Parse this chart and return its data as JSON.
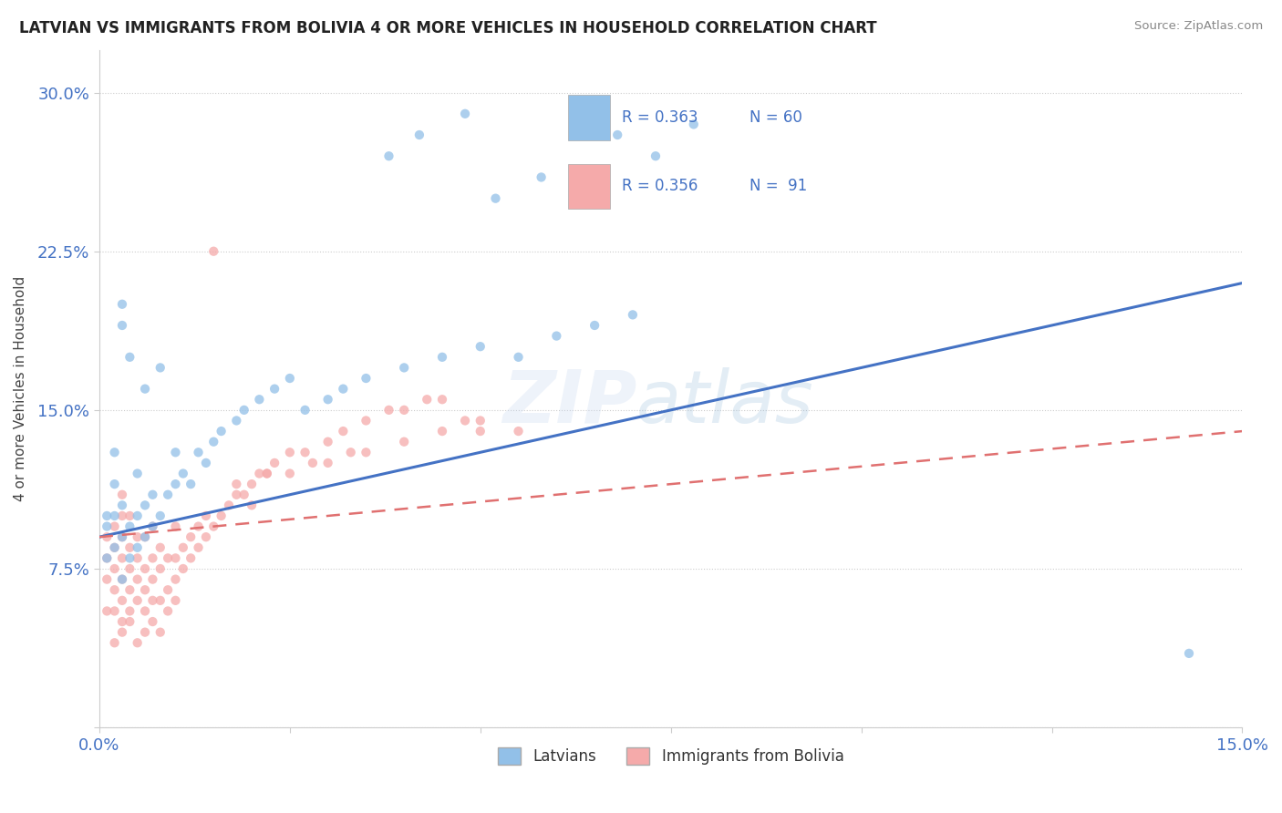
{
  "title": "LATVIAN VS IMMIGRANTS FROM BOLIVIA 4 OR MORE VEHICLES IN HOUSEHOLD CORRELATION CHART",
  "source": "Source: ZipAtlas.com",
  "ylabel": "4 or more Vehicles in Household",
  "xlim": [
    0.0,
    0.15
  ],
  "ylim": [
    0.0,
    0.32
  ],
  "R_latvian": 0.363,
  "N_latvian": 60,
  "R_bolivia": 0.356,
  "N_bolivia": 91,
  "color_latvian": "#92C0E8",
  "color_bolivia": "#F5AAAA",
  "color_trend_latvian": "#4472C4",
  "color_trend_bolivia": "#E07070",
  "legend_latvians": "Latvians",
  "legend_bolivia": "Immigrants from Bolivia",
  "trend_lat_y0": 0.09,
  "trend_lat_y1": 0.21,
  "trend_bol_y0": 0.09,
  "trend_bol_y1": 0.14,
  "latvian_x": [
    0.001,
    0.001,
    0.001,
    0.002,
    0.002,
    0.002,
    0.002,
    0.003,
    0.003,
    0.003,
    0.003,
    0.003,
    0.004,
    0.004,
    0.004,
    0.005,
    0.005,
    0.005,
    0.006,
    0.006,
    0.006,
    0.007,
    0.007,
    0.008,
    0.008,
    0.009,
    0.01,
    0.01,
    0.011,
    0.012,
    0.013,
    0.014,
    0.015,
    0.016,
    0.018,
    0.019,
    0.021,
    0.023,
    0.025,
    0.027,
    0.03,
    0.032,
    0.035,
    0.04,
    0.045,
    0.05,
    0.055,
    0.06,
    0.065,
    0.07,
    0.038,
    0.042,
    0.048,
    0.052,
    0.058,
    0.063,
    0.068,
    0.073,
    0.078,
    0.143
  ],
  "latvian_y": [
    0.095,
    0.08,
    0.1,
    0.085,
    0.1,
    0.115,
    0.13,
    0.07,
    0.09,
    0.105,
    0.19,
    0.2,
    0.08,
    0.095,
    0.175,
    0.085,
    0.1,
    0.12,
    0.09,
    0.105,
    0.16,
    0.095,
    0.11,
    0.1,
    0.17,
    0.11,
    0.115,
    0.13,
    0.12,
    0.115,
    0.13,
    0.125,
    0.135,
    0.14,
    0.145,
    0.15,
    0.155,
    0.16,
    0.165,
    0.15,
    0.155,
    0.16,
    0.165,
    0.17,
    0.175,
    0.18,
    0.175,
    0.185,
    0.19,
    0.195,
    0.27,
    0.28,
    0.29,
    0.25,
    0.26,
    0.26,
    0.28,
    0.27,
    0.285,
    0.035
  ],
  "bolivia_x": [
    0.001,
    0.001,
    0.001,
    0.001,
    0.002,
    0.002,
    0.002,
    0.002,
    0.002,
    0.003,
    0.003,
    0.003,
    0.003,
    0.003,
    0.003,
    0.003,
    0.004,
    0.004,
    0.004,
    0.004,
    0.004,
    0.005,
    0.005,
    0.005,
    0.005,
    0.006,
    0.006,
    0.006,
    0.006,
    0.007,
    0.007,
    0.007,
    0.007,
    0.008,
    0.008,
    0.008,
    0.009,
    0.009,
    0.01,
    0.01,
    0.01,
    0.011,
    0.011,
    0.012,
    0.012,
    0.013,
    0.013,
    0.014,
    0.014,
    0.015,
    0.016,
    0.017,
    0.018,
    0.019,
    0.02,
    0.021,
    0.022,
    0.023,
    0.025,
    0.027,
    0.03,
    0.032,
    0.035,
    0.038,
    0.04,
    0.043,
    0.045,
    0.048,
    0.05,
    0.055,
    0.002,
    0.003,
    0.004,
    0.005,
    0.006,
    0.007,
    0.008,
    0.009,
    0.01,
    0.02,
    0.025,
    0.03,
    0.035,
    0.04,
    0.045,
    0.05,
    0.015,
    0.018,
    0.022,
    0.028,
    0.033
  ],
  "bolivia_y": [
    0.055,
    0.07,
    0.08,
    0.09,
    0.055,
    0.065,
    0.075,
    0.085,
    0.095,
    0.05,
    0.06,
    0.07,
    0.08,
    0.09,
    0.1,
    0.11,
    0.055,
    0.065,
    0.075,
    0.085,
    0.1,
    0.06,
    0.07,
    0.08,
    0.09,
    0.055,
    0.065,
    0.075,
    0.09,
    0.06,
    0.07,
    0.08,
    0.095,
    0.06,
    0.075,
    0.085,
    0.065,
    0.08,
    0.07,
    0.08,
    0.095,
    0.075,
    0.085,
    0.08,
    0.09,
    0.085,
    0.095,
    0.09,
    0.1,
    0.095,
    0.1,
    0.105,
    0.11,
    0.11,
    0.115,
    0.12,
    0.12,
    0.125,
    0.13,
    0.13,
    0.135,
    0.14,
    0.145,
    0.15,
    0.15,
    0.155,
    0.155,
    0.145,
    0.14,
    0.14,
    0.04,
    0.045,
    0.05,
    0.04,
    0.045,
    0.05,
    0.045,
    0.055,
    0.06,
    0.105,
    0.12,
    0.125,
    0.13,
    0.135,
    0.14,
    0.145,
    0.225,
    0.115,
    0.12,
    0.125,
    0.13
  ]
}
